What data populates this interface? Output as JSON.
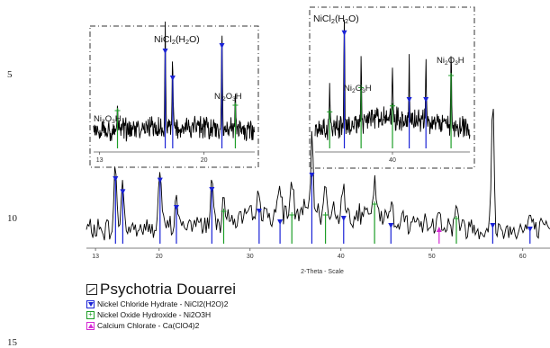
{
  "line_numbers": [
    "5",
    "10",
    "15"
  ],
  "colors": {
    "nickel_chloride": "#1a22d6",
    "nickel_oxide": "#1e9e28",
    "calcium_chlorate": "#d42ad4",
    "pattern": "#000000"
  },
  "legend": {
    "title": "Psychotria Douarrei",
    "items": [
      {
        "label": "Nickel Chloride Hydrate - NiCl2(H2O)2",
        "icon": "triangle-down-marker"
      },
      {
        "label": "Nickel Oxide Hydroxide - Ni2O3H",
        "icon": "plus-marker"
      },
      {
        "label": "Calcium Chlorate - Ca(ClO4)2",
        "icon": "triangle-up-marker"
      }
    ]
  },
  "chart_data": [
    {
      "type": "line",
      "xlabel": "2-Theta - Scale",
      "xlim": [
        12,
        63
      ],
      "xticks": [
        13,
        20,
        30,
        40,
        50,
        60
      ],
      "peaks": [
        {
          "x": 15.2,
          "h": 0.92,
          "phase": "NiCl2(H2O)",
          "intensity": 0.9
        },
        {
          "x": 16.0,
          "h": 0.72,
          "phase": "NiCl2(H2O)",
          "intensity": 0.72
        },
        {
          "x": 20.1,
          "h": 0.88,
          "phase": "NiCl2(H2O)",
          "intensity": 0.88
        },
        {
          "x": 21.9,
          "h": 0.45,
          "phase": "NiCl2(H2O)",
          "intensity": 0.5
        },
        {
          "x": 25.8,
          "h": 0.65,
          "phase": "NiCl2(H2O)",
          "intensity": 0.75
        },
        {
          "x": 27.1,
          "h": 0.45,
          "phase": "Ni2O3H",
          "intensity": 0.45
        },
        {
          "x": 31.0,
          "h": 0.42,
          "phase": "NiCl2(H2O)",
          "intensity": 0.45
        },
        {
          "x": 33.3,
          "h": 0.4,
          "phase": "NiCl2(H2O)",
          "intensity": 0.3
        },
        {
          "x": 34.6,
          "h": 0.5,
          "phase": "Ni2O3H",
          "intensity": 0.4
        },
        {
          "x": 36.8,
          "h": 0.95,
          "phase": "NiCl2(H2O)",
          "intensity": 0.95
        },
        {
          "x": 38.3,
          "h": 0.4,
          "phase": "Ni2O3H",
          "intensity": 0.4
        },
        {
          "x": 40.3,
          "h": 0.4,
          "phase": "NiCl2(H2O)",
          "intensity": 0.35
        },
        {
          "x": 43.7,
          "h": 0.55,
          "phase": "Ni2O3H",
          "intensity": 0.55
        },
        {
          "x": 45.5,
          "h": 0.3,
          "phase": "NiCl2(H2O)",
          "intensity": 0.25
        },
        {
          "x": 50.8,
          "h": 0.3,
          "phase": "Ca(ClO4)2",
          "intensity": 0.2
        },
        {
          "x": 52.7,
          "h": 0.35,
          "phase": "Ni2O3H",
          "intensity": 0.35
        },
        {
          "x": 56.7,
          "h": 1.75,
          "phase": "NiCl2(H2O)",
          "intensity": 0.25
        },
        {
          "x": 60.8,
          "h": 0.25,
          "phase": "NiCl2(H2O)",
          "intensity": 0.2
        }
      ]
    },
    {
      "type": "line",
      "inset": "left",
      "xlim": [
        12.6,
        23.4
      ],
      "xticks": [
        13,
        20
      ],
      "labels": [
        "Ni2O3H",
        "NiCl2(H2O)",
        "Ni2O3H"
      ],
      "peaks": [
        {
          "x": 14.2,
          "h": 0.2,
          "phase": "Ni2O3H",
          "intensity": 0.35
        },
        {
          "x": 17.4,
          "h": 0.95,
          "phase": "NiCl2(H2O)",
          "intensity": 0.9
        },
        {
          "x": 17.9,
          "h": 0.62,
          "phase": "NiCl2(H2O)",
          "intensity": 0.65
        },
        {
          "x": 21.2,
          "h": 0.88,
          "phase": "NiCl2(H2O)",
          "intensity": 0.95
        },
        {
          "x": 22.1,
          "h": 0.35,
          "phase": "Ni2O3H",
          "intensity": 0.4
        }
      ]
    },
    {
      "type": "line",
      "inset": "right",
      "xlim": [
        36.3,
        43.7
      ],
      "xticks": [
        40
      ],
      "labels": [
        "NiCl2(H2O)",
        "Ni2O3H",
        "Ni2O3H"
      ],
      "peaks": [
        {
          "x": 37.0,
          "h": 0.3,
          "phase": "Ni2O3H",
          "intensity": 0.3
        },
        {
          "x": 37.7,
          "h": 0.95,
          "phase": "NiCl2(H2O)",
          "intensity": 0.95
        },
        {
          "x": 38.5,
          "h": 0.5,
          "phase": "Ni2O3H",
          "intensity": 0.5
        },
        {
          "x": 40.0,
          "h": 0.4,
          "phase": "Ni2O3H",
          "intensity": 0.35
        },
        {
          "x": 40.8,
          "h": 0.45,
          "phase": "NiCl2(H2O)",
          "intensity": 0.4
        },
        {
          "x": 41.6,
          "h": 0.5,
          "phase": "NiCl2(H2O)",
          "intensity": 0.4
        },
        {
          "x": 42.8,
          "h": 0.65,
          "phase": "Ni2O3H",
          "intensity": 0.6
        }
      ]
    }
  ]
}
